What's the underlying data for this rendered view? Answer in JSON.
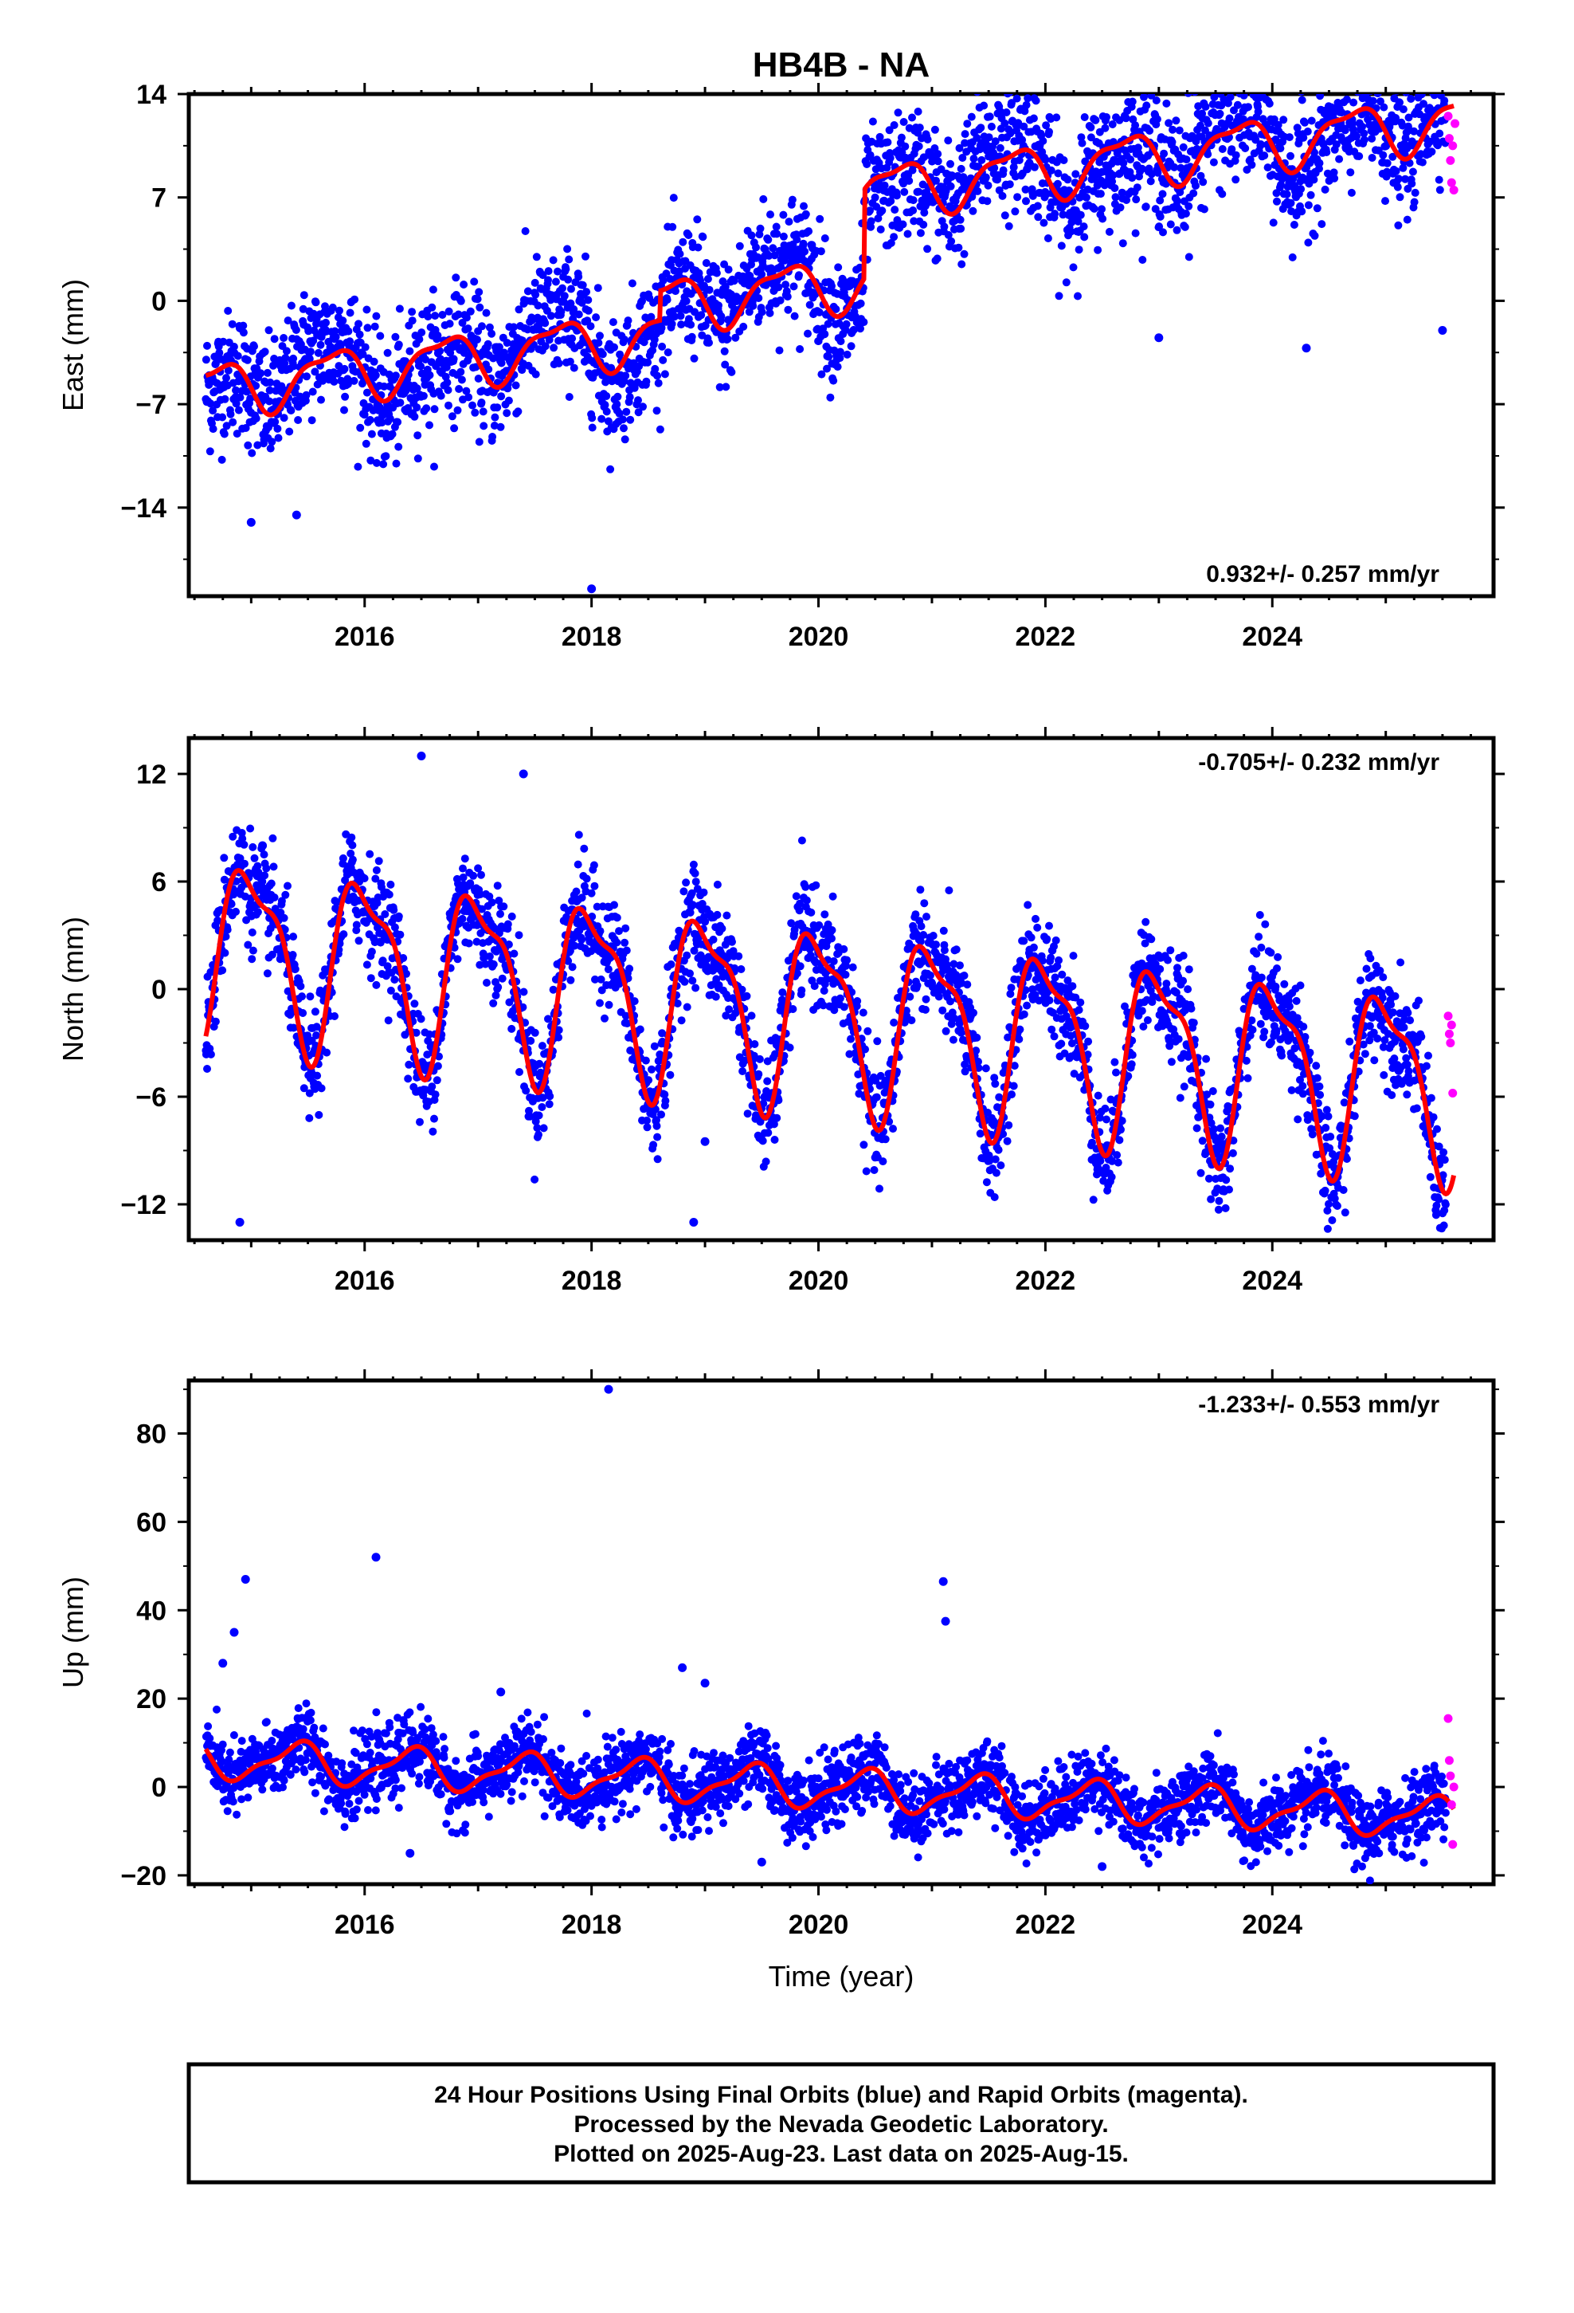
{
  "chart_data": {
    "type": "scatter",
    "title": "HB4B - NA",
    "xlabel": "Time (year)",
    "x_range": [
      2014.45,
      2025.95
    ],
    "x_ticks": [
      2016,
      2018,
      2020,
      2022,
      2024
    ],
    "colors": {
      "final": "#0000ff",
      "rapid": "#ff00ff",
      "model": "#ff0000",
      "frame": "#000000"
    },
    "panels": [
      {
        "name": "east",
        "ylabel": "East (mm)",
        "ylim": [
          -20,
          14
        ],
        "y_ticks": [
          14,
          7,
          0,
          -7,
          -14
        ],
        "rate": "0.932+/- 0.257 mm/yr",
        "rate_position": "bottom-right",
        "offsets": [
          {
            "year": 2018.6,
            "jump": 2.0
          },
          {
            "year": 2020.4,
            "jump": 6.0
          }
        ],
        "annual_amp": 1.7,
        "annual_phase": 0.55,
        "noise": 2.1,
        "model_start": -6.0,
        "outliers": [
          [
            2015.0,
            -15.0
          ],
          [
            2015.4,
            -14.5
          ],
          [
            2018.0,
            -19.5
          ],
          [
            2023.0,
            -2.5
          ],
          [
            2024.3,
            -3.2
          ],
          [
            2025.5,
            -2.0
          ]
        ],
        "rapid_points": [
          [
            2025.55,
            12.5
          ],
          [
            2025.56,
            11.0
          ],
          [
            2025.57,
            9.5
          ],
          [
            2025.58,
            8.0
          ],
          [
            2025.59,
            10.5
          ],
          [
            2025.6,
            7.5
          ],
          [
            2025.61,
            12.0
          ]
        ]
      },
      {
        "name": "north",
        "ylabel": "North (mm)",
        "ylim": [
          -14,
          14
        ],
        "y_ticks": [
          12,
          6,
          0,
          -6,
          -12
        ],
        "rate": "-0.705+/- 0.232 mm/yr",
        "rate_position": "top-right",
        "offsets": [],
        "annual_amp": 4.7,
        "annual_phase": 0.25,
        "noise": 1.5,
        "model_start": 2.5,
        "outliers": [
          [
            2014.9,
            -13.0
          ],
          [
            2018.9,
            -13.0
          ],
          [
            2019.0,
            -8.5
          ],
          [
            2015.1,
            8.0
          ],
          [
            2017.4,
            12.0
          ],
          [
            2016.5,
            13.0
          ]
        ],
        "rapid_points": [
          [
            2025.55,
            -1.5
          ],
          [
            2025.56,
            -2.5
          ],
          [
            2025.57,
            -3.0
          ],
          [
            2025.58,
            -2.0
          ],
          [
            2025.59,
            -5.8
          ]
        ]
      },
      {
        "name": "up",
        "ylabel": "Up (mm)",
        "ylim": [
          -22,
          92
        ],
        "y_ticks": [
          80,
          60,
          40,
          20,
          0,
          -20
        ],
        "rate": "-1.233+/- 0.553 mm/yr",
        "rate_position": "top-right",
        "offsets": [],
        "annual_amp": 4.2,
        "annual_phase": 0.85,
        "noise": 4.0,
        "model_start": 6.5,
        "outliers": [
          [
            2014.95,
            47.0
          ],
          [
            2014.85,
            35.0
          ],
          [
            2014.75,
            28.0
          ],
          [
            2016.1,
            52.0
          ],
          [
            2018.15,
            90.0
          ],
          [
            2021.1,
            46.5
          ],
          [
            2021.12,
            37.5
          ],
          [
            2018.8,
            27.0
          ],
          [
            2019.0,
            23.5
          ],
          [
            2016.4,
            -15.0
          ],
          [
            2017.2,
            21.5
          ],
          [
            2022.5,
            -18.0
          ],
          [
            2019.5,
            -17.0
          ]
        ],
        "rapid_points": [
          [
            2025.55,
            15.5
          ],
          [
            2025.56,
            6.0
          ],
          [
            2025.57,
            2.5
          ],
          [
            2025.58,
            -4.0
          ],
          [
            2025.59,
            -13.0
          ],
          [
            2025.6,
            0.0
          ]
        ]
      }
    ]
  },
  "footer": {
    "line1": "24 Hour Positions Using Final Orbits (blue) and Rapid Orbits (magenta).",
    "line2": "Processed by the Nevada Geodetic Laboratory.",
    "line3": "Plotted on 2025-Aug-23. Last data on 2025-Aug-15."
  }
}
